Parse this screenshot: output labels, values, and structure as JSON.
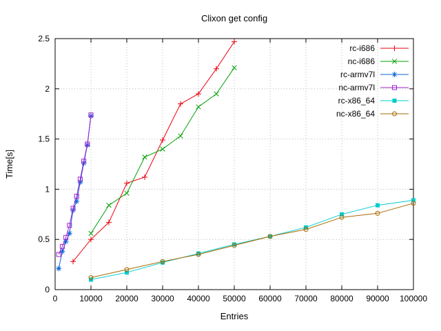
{
  "chart_data": {
    "type": "line",
    "title": "Clixon get config",
    "xlabel": "Entries",
    "ylabel": "Time[s]",
    "xlim": [
      0,
      100000
    ],
    "ylim": [
      0,
      2.5
    ],
    "xticks": [
      0,
      10000,
      20000,
      30000,
      40000,
      50000,
      60000,
      70000,
      80000,
      90000,
      100000
    ],
    "yticks": [
      0,
      0.5,
      1,
      1.5,
      2,
      2.5
    ],
    "grid": true,
    "legend_position": "top-right-inside",
    "grid_color": "#b8b8b8",
    "axis_color": "#000000",
    "series": [
      {
        "name": "rc-i686",
        "color": "#e8000d",
        "marker": "plus",
        "points": [
          [
            5000,
            0.28
          ],
          [
            10000,
            0.5
          ],
          [
            15000,
            0.67
          ],
          [
            20000,
            1.06
          ],
          [
            25000,
            1.12
          ],
          [
            30000,
            1.49
          ],
          [
            35000,
            1.85
          ],
          [
            40000,
            1.95
          ],
          [
            45000,
            2.2
          ],
          [
            50000,
            2.47
          ]
        ]
      },
      {
        "name": "nc-i686",
        "color": "#00a000",
        "marker": "cross",
        "points": [
          [
            10000,
            0.56
          ],
          [
            15000,
            0.84
          ],
          [
            20000,
            0.96
          ],
          [
            25000,
            1.32
          ],
          [
            30000,
            1.4
          ],
          [
            35000,
            1.53
          ],
          [
            40000,
            1.82
          ],
          [
            45000,
            1.95
          ],
          [
            50000,
            2.21
          ]
        ]
      },
      {
        "name": "rc-armv7l",
        "color": "#0b62d6",
        "marker": "asterisk",
        "points": [
          [
            1000,
            0.21
          ],
          [
            2000,
            0.38
          ],
          [
            3000,
            0.48
          ],
          [
            4000,
            0.56
          ],
          [
            5000,
            0.79
          ],
          [
            6000,
            0.88
          ],
          [
            7000,
            1.07
          ],
          [
            8000,
            1.26
          ],
          [
            9000,
            1.44
          ],
          [
            10000,
            1.73
          ]
        ]
      },
      {
        "name": "nc-armv7l",
        "color": "#a020d0",
        "marker": "square-open",
        "points": [
          [
            1000,
            0.35
          ],
          [
            2000,
            0.43
          ],
          [
            3000,
            0.52
          ],
          [
            4000,
            0.64
          ],
          [
            5000,
            0.81
          ],
          [
            6000,
            0.93
          ],
          [
            7000,
            1.1
          ],
          [
            8000,
            1.28
          ],
          [
            9000,
            1.45
          ],
          [
            10000,
            1.74
          ]
        ]
      },
      {
        "name": "rc-x86_64",
        "color": "#00cccc",
        "marker": "square-filled",
        "points": [
          [
            10000,
            0.1
          ],
          [
            20000,
            0.17
          ],
          [
            30000,
            0.27
          ],
          [
            40000,
            0.36
          ],
          [
            50000,
            0.45
          ],
          [
            60000,
            0.53
          ],
          [
            70000,
            0.62
          ],
          [
            80000,
            0.75
          ],
          [
            90000,
            0.84
          ],
          [
            100000,
            0.89
          ]
        ]
      },
      {
        "name": "nc-x86_64",
        "color": "#a86a00",
        "marker": "circle-open",
        "points": [
          [
            10000,
            0.12
          ],
          [
            20000,
            0.2
          ],
          [
            30000,
            0.28
          ],
          [
            40000,
            0.35
          ],
          [
            50000,
            0.44
          ],
          [
            60000,
            0.53
          ],
          [
            70000,
            0.6
          ],
          [
            80000,
            0.72
          ],
          [
            90000,
            0.76
          ],
          [
            100000,
            0.86
          ]
        ]
      }
    ]
  }
}
